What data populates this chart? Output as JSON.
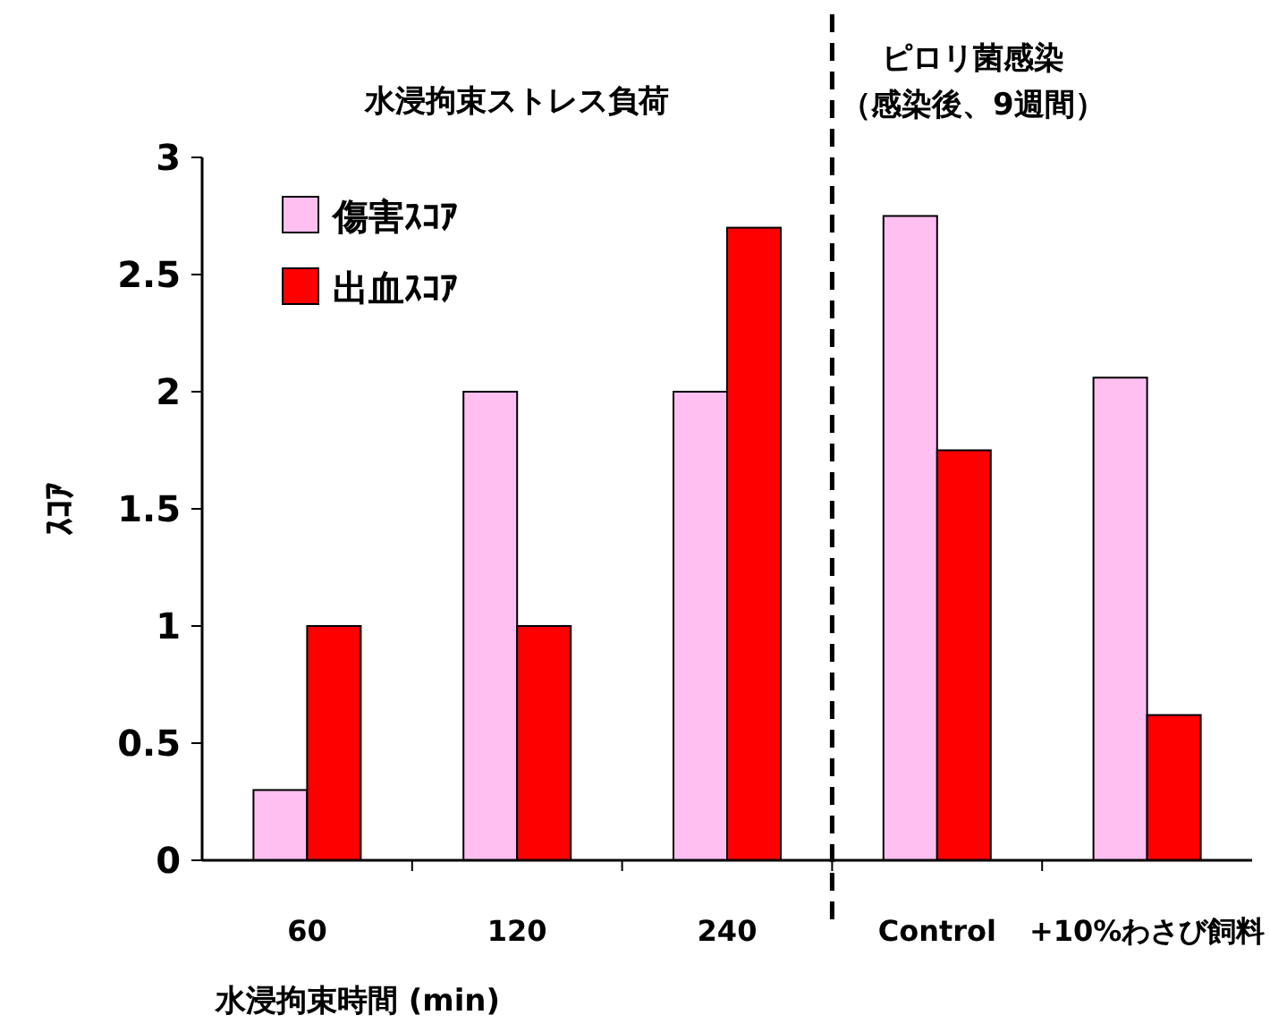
{
  "chart_data": {
    "type": "bar",
    "ylabel": "ｽｺｱ",
    "xlabel": "水浸拘束時間 (min)",
    "categories": [
      "60",
      "120",
      "240",
      "Control",
      "+10%わさび飼料"
    ],
    "series": [
      {
        "name": "傷害ｽｺｱ",
        "color": "#ffbff0",
        "values": [
          0.3,
          2,
          2,
          2.75,
          2.06
        ]
      },
      {
        "name": "出血ｽｺｱ",
        "color": "#ff0000",
        "values": [
          1,
          1,
          2.7,
          1.75,
          0.62
        ]
      }
    ],
    "ylim": [
      0,
      3
    ],
    "yticks": [
      0,
      0.5,
      1,
      1.5,
      2,
      2.5,
      3
    ],
    "legend": "top left",
    "grid": false,
    "annotations": [
      "水浸拘束ストレス負荷",
      "ピロリ菌感染",
      "（感染後、9週間）"
    ]
  }
}
